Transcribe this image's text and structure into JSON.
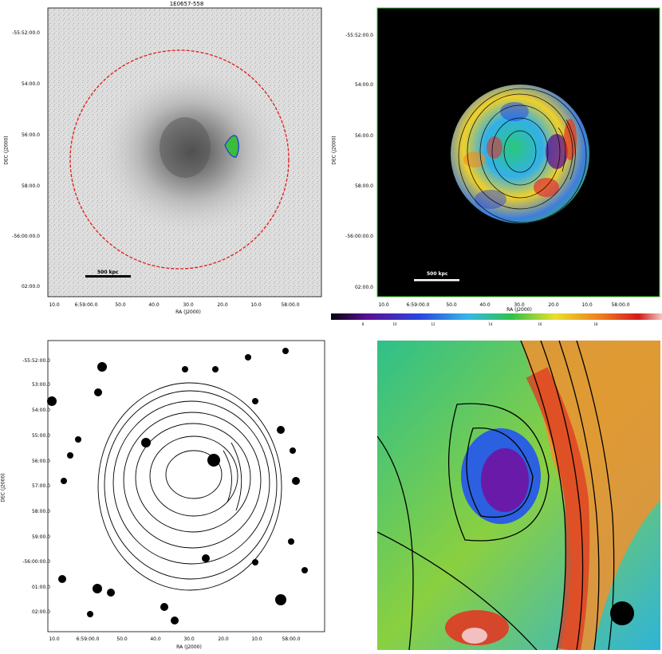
{
  "figure": {
    "title": "1E0657-558",
    "colors": {
      "circle": "#e21b1b",
      "shock_outline": "#1f3fd8",
      "shock_fill": "#3bbd3b",
      "scalebar": "#000000",
      "scalebar_light": "#ffffff",
      "tile_frame": "#3ac43a"
    }
  },
  "panel_a": {
    "ra_label": "RA (J2000)",
    "dec_label": "DEC (J2000)",
    "ra_ticks": [
      "10.0",
      "6:59:00.0",
      "50.0",
      "40.0",
      "30.0",
      "20.0",
      "10.0",
      "58:00.0"
    ],
    "dec_ticks": [
      "-55:52:00.0",
      "54:00.0",
      "56:00.0",
      "58:00.0",
      "-56:00:00.0",
      "02:00.0"
    ],
    "scalebar_label": "500 kpc"
  },
  "panel_b": {
    "ra_label": "RA (J2000)",
    "dec_label": "DEC (J2000)",
    "ra_ticks": [
      "10.0",
      "6:59:00.0",
      "50.0",
      "40.0",
      "30.0",
      "20.0",
      "10.0",
      "58:00.0"
    ],
    "dec_ticks": [
      "-55:52:00.0",
      "54:00.0",
      "56:00.0",
      "58:00.0",
      "-56:00:00.0",
      "02:00.0"
    ],
    "scalebar_label": "500 kpc",
    "colorbar_ticks": [
      "8",
      "10",
      "12",
      "14",
      "16",
      "18"
    ]
  },
  "panel_c": {
    "ra_label": "RA (J2000)",
    "dec_label": "DEC (J2000)",
    "ra_ticks": [
      "10.0",
      "6:59:00.0",
      "50.0",
      "40.0",
      "30.0",
      "20.0",
      "10.0",
      "58:00.0"
    ],
    "dec_ticks": [
      "-55:52:00.0",
      "53:00.0",
      "54:00.0",
      "55:00.0",
      "56:00.0",
      "57:00.0",
      "58:00.0",
      "59:00.0",
      "-56:00:00.0",
      "01:00.0",
      "02:00.0"
    ]
  }
}
